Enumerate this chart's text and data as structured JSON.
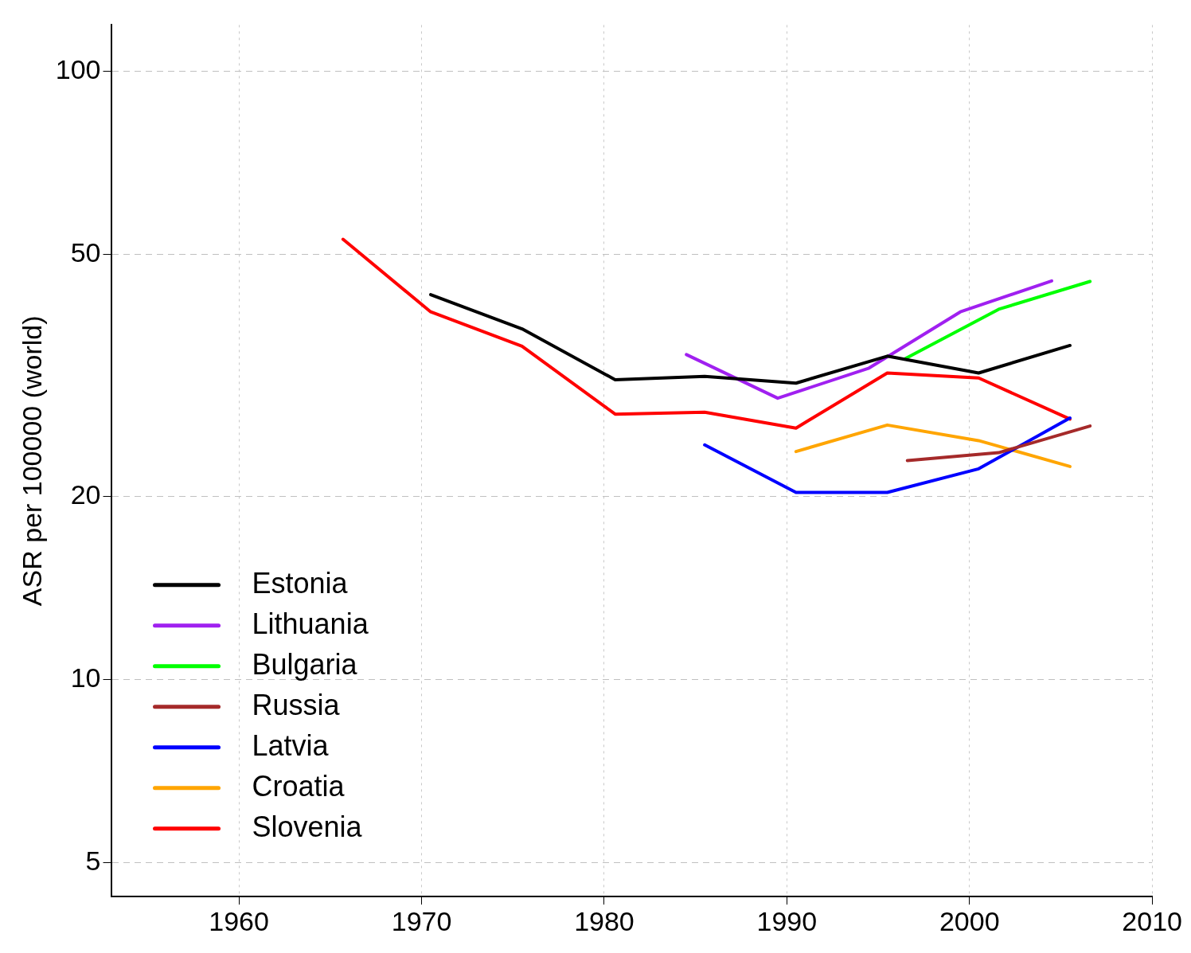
{
  "chart_data": {
    "type": "line",
    "ylabel": "ASR per 100000 (world)",
    "log": "y",
    "xlim": [
      1953,
      2010
    ],
    "xticks": [
      1960,
      1970,
      1980,
      1990,
      2000,
      2010
    ],
    "ylim": [
      4.4,
      119
    ],
    "yticks": [
      5,
      10,
      20,
      50,
      100
    ],
    "grid": true,
    "legend": "bottom left",
    "marker": "none",
    "line_style": "solid",
    "series": [
      {
        "name": "Estonia",
        "color": "#000000",
        "x": [
          1970.5,
          1975.5,
          1980.6,
          1985.5,
          1990.5,
          1995.5,
          2000.5,
          2005.5
        ],
        "values": [
          42.9,
          37.7,
          31.1,
          31.5,
          30.7,
          34.0,
          31.9,
          35.4
        ]
      },
      {
        "name": "Lithuania",
        "color": "#a020f0",
        "x": [
          1984.5,
          1989.5,
          1994.5,
          1999.5,
          2004.5
        ],
        "values": [
          34.2,
          29.0,
          32.5,
          40.2,
          45.2
        ]
      },
      {
        "name": "Bulgaria",
        "color": "#00ff00",
        "x": [
          1996.5,
          2001.6,
          2006.6
        ],
        "values": [
          33.7,
          40.6,
          45.1
        ]
      },
      {
        "name": "Russia",
        "color": "#a52a2a",
        "x": [
          1996.6,
          2001.6,
          2006.6
        ],
        "values": [
          22.9,
          23.6,
          26.1
        ]
      },
      {
        "name": "Latvia",
        "color": "#0000ff",
        "x": [
          1985.5,
          1990.5,
          1995.5,
          2000.5,
          2005.5
        ],
        "values": [
          24.3,
          20.3,
          20.3,
          22.2,
          26.9
        ]
      },
      {
        "name": "Croatia",
        "color": "#ffa500",
        "x": [
          1990.5,
          1995.5,
          2000.5,
          2005.5
        ],
        "values": [
          23.7,
          26.2,
          24.7,
          22.4
        ]
      },
      {
        "name": "Slovenia",
        "color": "#ff0000",
        "x": [
          1965.7,
          1970.5,
          1975.5,
          1980.6,
          1985.5,
          1990.5,
          1995.5,
          2000.5,
          2005.5
        ],
        "values": [
          52.9,
          40.2,
          35.3,
          27.3,
          27.5,
          25.9,
          31.9,
          31.3,
          26.8
        ]
      }
    ]
  }
}
